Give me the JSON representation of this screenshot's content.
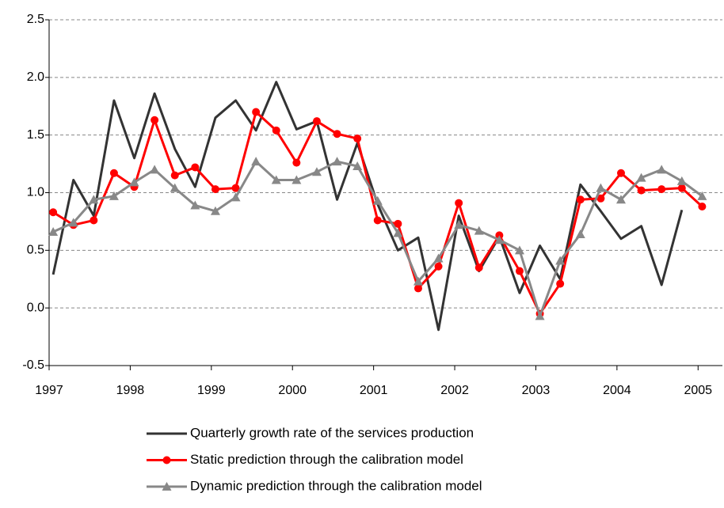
{
  "chart_data": {
    "type": "line",
    "x": [
      1997.05,
      1997.3,
      1997.55,
      1997.8,
      1998.05,
      1998.3,
      1998.55,
      1998.8,
      1999.05,
      1999.3,
      1999.55,
      1999.8,
      2000.05,
      2000.3,
      2000.55,
      2000.8,
      2001.05,
      2001.3,
      2001.55,
      2001.8,
      2002.05,
      2002.3,
      2002.55,
      2002.8,
      2003.05,
      2003.3,
      2003.55,
      2003.8,
      2004.05,
      2004.3,
      2004.55,
      2004.8,
      2005.05
    ],
    "xlim": [
      1997,
      2005.3
    ],
    "xticks": [
      1997,
      1998,
      1999,
      2000,
      2001,
      2002,
      2003,
      2004,
      2005
    ],
    "ylim": [
      -0.5,
      2.5
    ],
    "yticks": [
      {
        "value": -0.5,
        "label": "-0.5"
      },
      {
        "value": 0,
        "label": "0.0"
      },
      {
        "value": 0.5,
        "label": "0.5"
      },
      {
        "value": 1,
        "label": "1.0"
      },
      {
        "value": 1.5,
        "label": "1.5"
      },
      {
        "value": 2,
        "label": "2.0"
      },
      {
        "value": 2.5,
        "label": "2.5"
      }
    ],
    "grid": true,
    "series": [
      {
        "name": "Quarterly growth rate of the services production",
        "color": "#333333",
        "marker": "none",
        "values": [
          0.29,
          1.11,
          0.8,
          1.8,
          1.3,
          1.86,
          1.38,
          1.05,
          1.65,
          1.8,
          1.54,
          1.96,
          1.55,
          1.62,
          0.94,
          1.43,
          0.9,
          0.5,
          0.61,
          -0.19,
          0.8,
          0.32,
          0.62,
          0.13,
          0.54,
          0.25,
          1.07,
          0.84,
          0.6,
          0.71,
          0.2,
          0.85,
          null
        ]
      },
      {
        "name": "Static prediction through the calibration model",
        "color": "#ff0000",
        "marker": "circle",
        "values": [
          0.83,
          0.72,
          0.76,
          1.17,
          1.05,
          1.63,
          1.15,
          1.22,
          1.03,
          1.04,
          1.7,
          1.54,
          1.26,
          1.62,
          1.51,
          1.47,
          0.76,
          0.73,
          0.17,
          0.36,
          0.91,
          0.35,
          0.63,
          0.32,
          -0.05,
          0.21,
          0.94,
          0.95,
          1.17,
          1.02,
          1.03,
          1.04,
          0.88
        ]
      },
      {
        "name": "Dynamic prediction through the calibration model",
        "color": "#888888",
        "marker": "triangle",
        "values": [
          0.66,
          0.74,
          0.94,
          0.97,
          1.09,
          1.2,
          1.04,
          0.89,
          0.84,
          0.96,
          1.27,
          1.11,
          1.11,
          1.18,
          1.27,
          1.23,
          0.93,
          0.65,
          0.23,
          0.43,
          0.72,
          0.67,
          0.59,
          0.5,
          -0.07,
          0.41,
          0.64,
          1.04,
          0.94,
          1.13,
          1.2,
          1.1,
          0.97
        ]
      }
    ]
  }
}
